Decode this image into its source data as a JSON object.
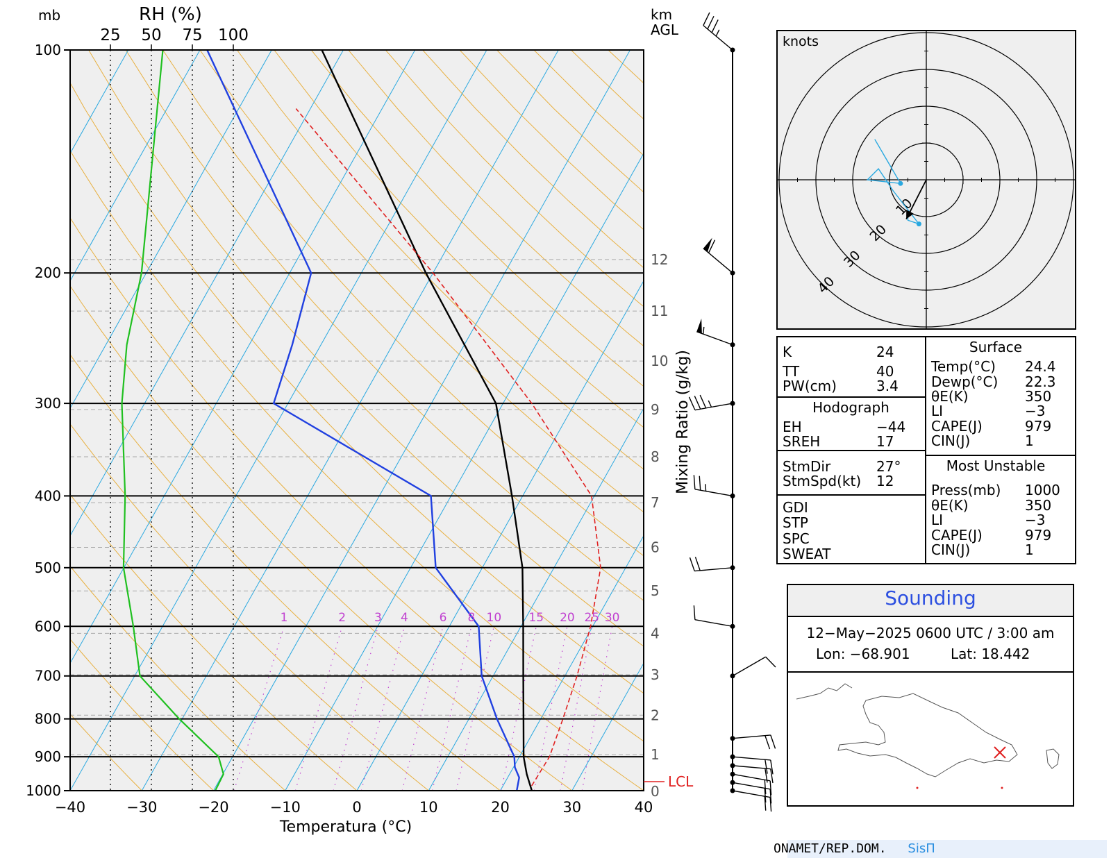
{
  "chart_data": [
    {
      "type": "line",
      "title": "",
      "left_axis_label": "mb",
      "rh_axis_label": "RH (%)",
      "rh_ticks": [
        "25",
        "50",
        "75",
        "100"
      ],
      "right_axis_label": "km AGL",
      "mixing_ratio_label": "Mixing Ratio (g/kg)",
      "xlabel": "Temperatura (°C)",
      "x_ticks": [
        -40,
        -30,
        -20,
        -10,
        0,
        10,
        20,
        30,
        40
      ],
      "xlim": [
        -40,
        40
      ],
      "pressure_ticks": [
        100,
        200,
        300,
        400,
        500,
        600,
        700,
        800,
        900,
        1000
      ],
      "ylim_mb": [
        1000,
        100
      ],
      "height_ticks_km": [
        "0",
        "1",
        "2",
        "3",
        "4",
        "5",
        "6",
        "7",
        "8",
        "9",
        "10",
        "11",
        "12"
      ],
      "mixing_ratio_ticks": [
        "1",
        "2",
        "3",
        "4",
        "6",
        "8",
        "10",
        "15",
        "20",
        "25",
        "30"
      ],
      "lcl_label": "LCL",
      "lcl_mb": 985,
      "series": [
        {
          "name": "",
          "role": "temperature",
          "color": "#000000",
          "points": [
            [
              1000,
              24.4
            ],
            [
              950,
              22.4
            ],
            [
              900,
              20.6
            ],
            [
              800,
              17.6
            ],
            [
              700,
              14.2
            ],
            [
              600,
              10.3
            ],
            [
              500,
              5.6
            ],
            [
              400,
              -1.5
            ],
            [
              300,
              -11
            ],
            [
              200,
              -31
            ],
            [
              100,
              -63
            ]
          ]
        },
        {
          "name": "",
          "role": "dewpoint",
          "color": "#2040e0",
          "points": [
            [
              1000,
              22.3
            ],
            [
              960,
              21.6
            ],
            [
              930,
              20.2
            ],
            [
              900,
              19.3
            ],
            [
              800,
              13.9
            ],
            [
              700,
              8.4
            ],
            [
              600,
              4.1
            ],
            [
              500,
              -6.5
            ],
            [
              400,
              -12.8
            ],
            [
              300,
              -42
            ],
            [
              250,
              -44
            ],
            [
              200,
              -47
            ],
            [
              100,
              -79
            ]
          ]
        },
        {
          "name": "",
          "role": "parcel",
          "color": "#e02020",
          "points": [
            [
              985,
              24
            ],
            [
              900,
              24.2
            ],
            [
              800,
              23.1
            ],
            [
              700,
              21.7
            ],
            [
              600,
              19.7
            ],
            [
              500,
              16.5
            ],
            [
              400,
              9.6
            ],
            [
              300,
              -6
            ],
            [
              200,
              -30
            ],
            [
              120,
              -62
            ]
          ]
        },
        {
          "name": "",
          "role": "relative_humidity",
          "color": "#20c020",
          "points": [
            [
              1000,
              89
            ],
            [
              950,
              94
            ],
            [
              900,
              91
            ],
            [
              800,
              67
            ],
            [
              700,
              43
            ],
            [
              600,
              39
            ],
            [
              500,
              33
            ],
            [
              400,
              34
            ],
            [
              300,
              32
            ],
            [
              250,
              35
            ],
            [
              200,
              44
            ],
            [
              100,
              57
            ]
          ]
        }
      ],
      "wind_barbs": [
        {
          "mb": 100,
          "dir_deg": 310,
          "speed_kt": 35
        },
        {
          "mb": 200,
          "dir_deg": 310,
          "speed_kt": 60
        },
        {
          "mb": 250,
          "dir_deg": 290,
          "speed_kt": 55
        },
        {
          "mb": 300,
          "dir_deg": 260,
          "speed_kt": 35
        },
        {
          "mb": 400,
          "dir_deg": 280,
          "speed_kt": 25
        },
        {
          "mb": 500,
          "dir_deg": 265,
          "speed_kt": 20
        },
        {
          "mb": 600,
          "dir_deg": 280,
          "speed_kt": 10
        },
        {
          "mb": 700,
          "dir_deg": 60,
          "speed_kt": 10
        },
        {
          "mb": 850,
          "dir_deg": 85,
          "speed_kt": 20
        },
        {
          "mb": 900,
          "dir_deg": 95,
          "speed_kt": 20
        },
        {
          "mb": 925,
          "dir_deg": 95,
          "speed_kt": 20
        },
        {
          "mb": 950,
          "dir_deg": 100,
          "speed_kt": 20
        },
        {
          "mb": 975,
          "dir_deg": 100,
          "speed_kt": 20
        },
        {
          "mb": 1000,
          "dir_deg": 100,
          "speed_kt": 20
        }
      ]
    },
    {
      "type": "scatter",
      "title": "",
      "label": "knots",
      "ring_labels": [
        "10",
        "20",
        "30",
        "40"
      ],
      "hodograph_uv_kt": [
        [
          -14,
          11
        ],
        [
          -7,
          -1
        ],
        [
          -16,
          0
        ],
        [
          -13,
          3
        ],
        [
          -9,
          -3
        ],
        [
          -2,
          -12
        ],
        [
          -5,
          -11
        ],
        [
          -5,
          -10
        ]
      ],
      "storm_motion_kt": {
        "dir_deg": 27,
        "speed_kt": 12
      }
    }
  ],
  "indices": {
    "k": {
      "label": "K",
      "value": "24"
    },
    "tt": {
      "label": "TT",
      "value": "40"
    },
    "pw": {
      "label": "PW(cm)",
      "value": "3.4"
    },
    "hodograph_title": "Hodograph",
    "eh": {
      "label": "EH",
      "value": "−44"
    },
    "sreh": {
      "label": "SREH",
      "value": "17"
    },
    "stmdir": {
      "label": "StmDir",
      "value": "27°"
    },
    "stmspd": {
      "label": "StmSpd(kt)",
      "value": "12"
    },
    "gdi": {
      "label": "GDI"
    },
    "stp": {
      "label": "STP"
    },
    "spc": {
      "label": "SPC"
    },
    "sweat": {
      "label": "SWEAT"
    },
    "surface_title": "Surface",
    "temp": {
      "label": "Temp(°C)",
      "value": "24.4"
    },
    "dewp": {
      "label": "Dewp(°C)",
      "value": "22.3"
    },
    "thetae": {
      "label": "θE(K)",
      "value": "350"
    },
    "li": {
      "label": "LI",
      "value": "−3"
    },
    "cape": {
      "label": "CAPE(J)",
      "value": "979"
    },
    "cin": {
      "label": "CIN(J)",
      "value": "1"
    },
    "mu_title": "Most Unstable",
    "mu_press": {
      "label": "Press(mb)",
      "value": "1000"
    },
    "mu_thetae": {
      "label": "θE(K)",
      "value": "350"
    },
    "mu_li": {
      "label": "LI",
      "value": "−3"
    },
    "mu_cape": {
      "label": "CAPE(J)",
      "value": "979"
    },
    "mu_cin": {
      "label": "CIN(J)",
      "value": "1"
    }
  },
  "info": {
    "title": "Sounding",
    "datetime": "12−May−2025 0600  UTC / 3:00 am",
    "lon": "Lon: −68.901",
    "lat": "Lat: 18.442"
  },
  "footer": {
    "org": "ONAMET/REP.DOM.",
    "brand": "SisΠ"
  },
  "colors": {
    "temperature": "#000000",
    "dewpoint": "#2040e0",
    "parcel": "#e02020",
    "rh": "#20c020",
    "isotherm": "#29a8e0",
    "dry_adiabat": "#e8b040",
    "mixing_ratio": "#c040d0",
    "plot_bg": "#efefef",
    "title_blue": "#2c4fe0",
    "station_marker": "#e02020"
  }
}
